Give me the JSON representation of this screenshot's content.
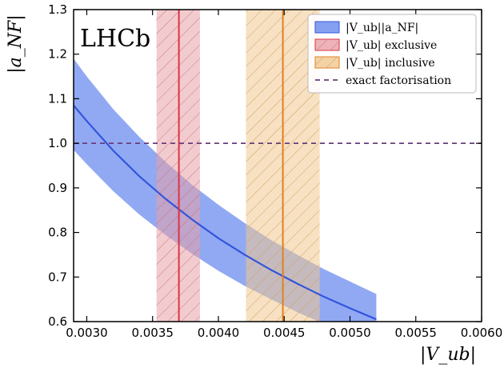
{
  "chart_data": {
    "type": "line",
    "experiment_label": "LHCb",
    "xlabel": "|V_ub|",
    "ylabel": "|a_NF|",
    "xlim": [
      0.0029,
      0.006
    ],
    "ylim": [
      0.6,
      1.3
    ],
    "xticks": [
      "0.0030",
      "0.0035",
      "0.0040",
      "0.0045",
      "0.0050",
      "0.0055",
      "0.0060"
    ],
    "yticks": [
      "0.6",
      "0.7",
      "0.8",
      "0.9",
      "1.0",
      "1.1",
      "1.2",
      "1.3"
    ],
    "grid": false,
    "legend_position": "top-right",
    "series": [
      {
        "name": "|V_ub||a_NF|",
        "kind": "curve-with-band",
        "color": "#3355dd",
        "band_color": "#6688ee",
        "x": [
          0.0029,
          0.003,
          0.0032,
          0.0034,
          0.0036,
          0.0038,
          0.004,
          0.0042,
          0.0044,
          0.0046,
          0.0048,
          0.005,
          0.0052
        ],
        "y": [
          1.085,
          1.05,
          0.984,
          0.926,
          0.875,
          0.829,
          0.787,
          0.75,
          0.716,
          0.685,
          0.656,
          0.63,
          0.605
        ],
        "y_low": [
          0.985,
          0.953,
          0.893,
          0.84,
          0.794,
          0.752,
          0.714,
          0.68,
          0.65,
          0.621,
          0.595,
          0.572,
          0.549
        ],
        "y_high": [
          1.19,
          1.15,
          1.077,
          1.014,
          0.958,
          0.907,
          0.862,
          0.821,
          0.783,
          0.75,
          0.718,
          0.69,
          0.662
        ]
      },
      {
        "name": "|V_ub| exclusive",
        "kind": "vertical-band",
        "color": "#dd3344",
        "band_color": "#e8a0a8",
        "hatch_color": "#c87880",
        "center": 0.0037,
        "low": 0.00353,
        "high": 0.00386
      },
      {
        "name": "|V_ub| inclusive",
        "kind": "vertical-band",
        "color": "#e08020",
        "band_color": "#f0c890",
        "hatch_color": "#d0a060",
        "center": 0.00449,
        "low": 0.00421,
        "high": 0.00477
      },
      {
        "name": "exact factorisation",
        "kind": "hline-dashed",
        "color": "#6a3d7a",
        "y": 1.0
      }
    ]
  }
}
